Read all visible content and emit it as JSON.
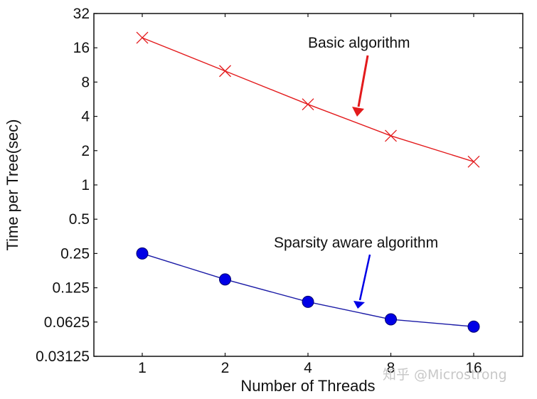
{
  "chart_data": {
    "type": "line",
    "title": "",
    "xlabel": "Number of Threads",
    "ylabel": "Time per Tree(sec)",
    "x_scale": "log2",
    "y_scale": "log2",
    "x": [
      1,
      2,
      4,
      8,
      16
    ],
    "x_tick_labels": [
      "1",
      "2",
      "4",
      "8",
      "16"
    ],
    "y_tick_labels": [
      "32",
      "16",
      "8",
      "4",
      "2",
      "1",
      "0.5",
      "0.25",
      "0.125",
      "0.0625",
      "0.03125"
    ],
    "ylim": [
      0.03125,
      32
    ],
    "grid": false,
    "legend": "none (inline annotations with arrows)",
    "series": [
      {
        "name": "Basic algorithm",
        "color": "#e31a1c",
        "marker": "x",
        "values": [
          19.6,
          10.0,
          5.1,
          2.7,
          1.6
        ]
      },
      {
        "name": "Sparsity aware algorithm",
        "color": "#0000e6",
        "marker": "filled-circle",
        "values": [
          0.25,
          0.148,
          0.094,
          0.066,
          0.057
        ]
      }
    ],
    "annotations": [
      {
        "text": "Basic algorithm",
        "arrow_color": "#e31a1c"
      },
      {
        "text": "Sparsity aware algorithm",
        "arrow_color": "#0000e6"
      }
    ]
  },
  "watermark": "知乎 @Microstrong"
}
